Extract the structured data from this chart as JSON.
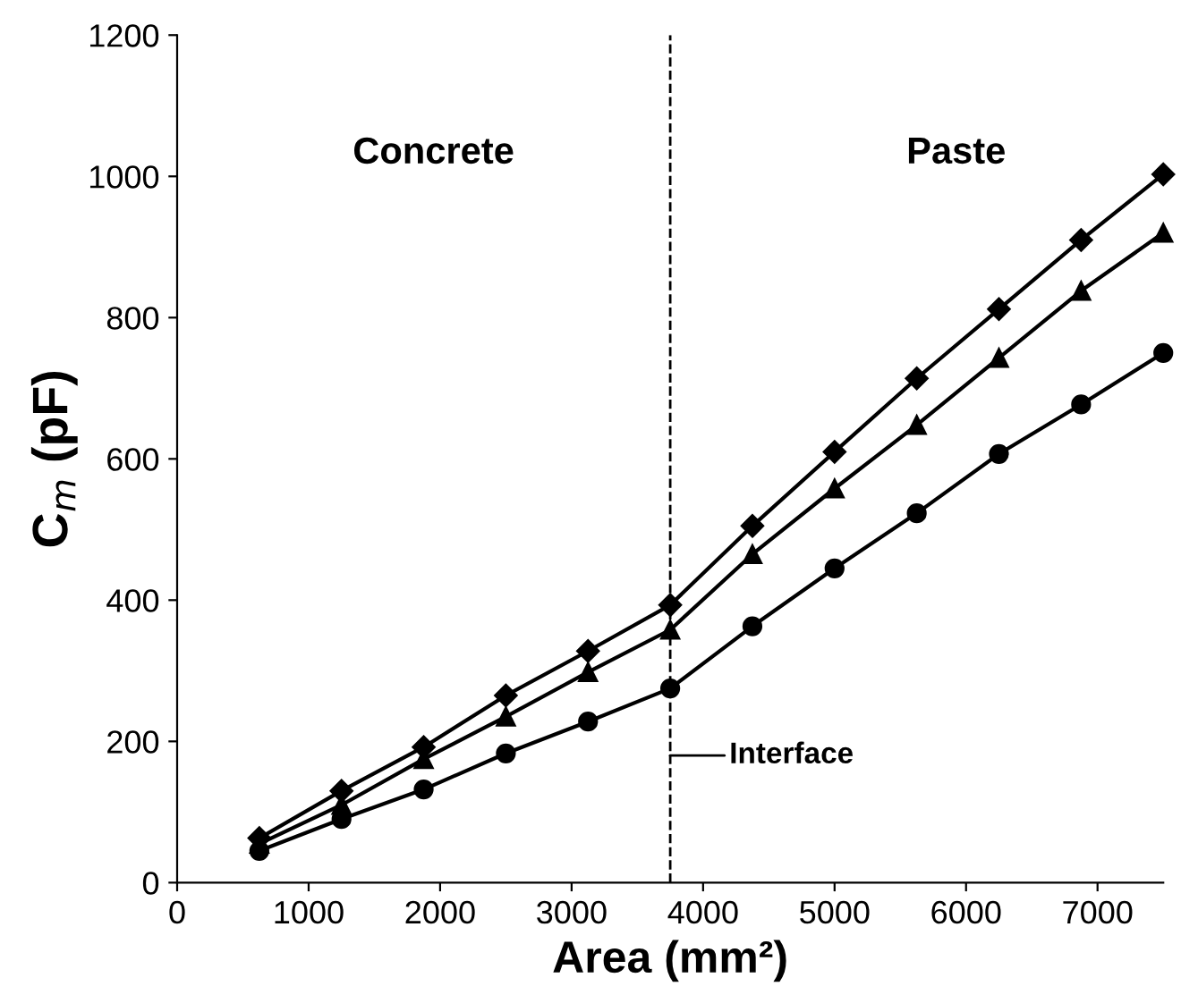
{
  "chart_data": {
    "type": "line",
    "xlabel": "Area (mm²)",
    "ylabel": "C$_{m}$ (pF)",
    "x": [
      625,
      1250,
      1875,
      2500,
      3125,
      3750,
      4375,
      5000,
      5625,
      6250,
      6875,
      7500
    ],
    "series": [
      {
        "color": "#000000",
        "marker": "diamond",
        "values": [
          63,
          130,
          192,
          265,
          328,
          393,
          505,
          610,
          714,
          812,
          910,
          1003
        ]
      },
      {
        "color": "#000000",
        "marker": "triangle",
        "values": [
          55,
          110,
          175,
          235,
          298,
          358,
          465,
          558,
          648,
          743,
          838,
          920
        ]
      },
      {
        "color": "#000000",
        "marker": "circle",
        "values": [
          45,
          90,
          132,
          183,
          228,
          275,
          363,
          445,
          523,
          607,
          677,
          750
        ]
      }
    ],
    "xlim": [
      0,
      7500
    ],
    "xticks": [
      0,
      1000,
      2000,
      3000,
      4000,
      5000,
      6000,
      7000
    ],
    "ylim": [
      0,
      1200
    ],
    "yticks": [
      0,
      200,
      400,
      600,
      800,
      1000,
      1200
    ],
    "ref_lines": [
      {
        "axis": "x",
        "value": 3750,
        "label": "Interface",
        "color": "#000000",
        "line_style": "dashed"
      }
    ],
    "annotations": [
      "Concrete",
      "Paste"
    ],
    "grid": false,
    "legend": false,
    "line_style": "solid"
  }
}
